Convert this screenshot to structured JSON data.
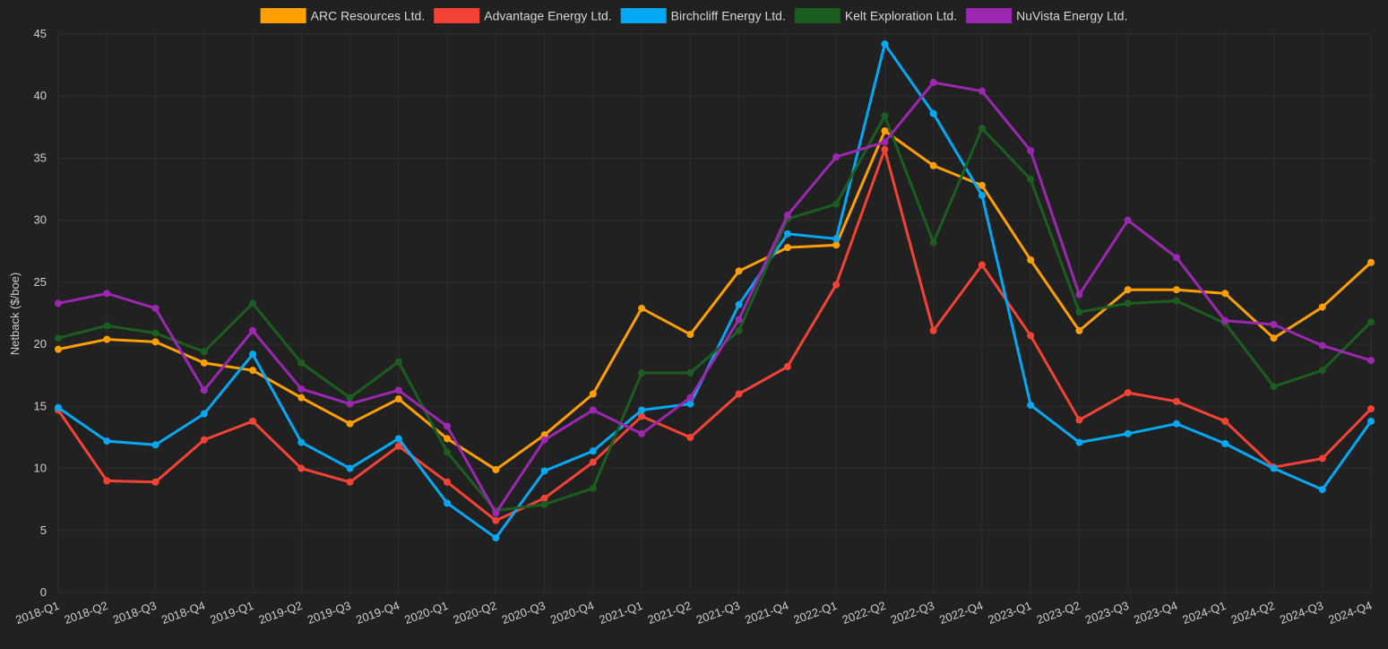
{
  "chart_data": {
    "type": "line",
    "title": "",
    "xlabel": "",
    "ylabel": "Netback ($/boe)",
    "ylim": [
      0,
      45
    ],
    "yticks": [
      0,
      5,
      10,
      15,
      20,
      25,
      30,
      35,
      40,
      45
    ],
    "grid": true,
    "legend_position": "top",
    "categories": [
      "2018-Q1",
      "2018-Q2",
      "2018-Q3",
      "2018-Q4",
      "2019-Q1",
      "2019-Q2",
      "2019-Q3",
      "2019-Q4",
      "2020-Q1",
      "2020-Q2",
      "2020-Q3",
      "2020-Q4",
      "2021-Q1",
      "2021-Q2",
      "2021-Q3",
      "2021-Q4",
      "2022-Q1",
      "2022-Q2",
      "2022-Q3",
      "2022-Q4",
      "2023-Q1",
      "2023-Q2",
      "2023-Q3",
      "2023-Q4",
      "2024-Q1",
      "2024-Q2",
      "2024-Q3",
      "2024-Q4"
    ],
    "series": [
      {
        "name": "ARC Resources Ltd.",
        "color": "#ff9f00",
        "values": [
          19.6,
          20.4,
          20.2,
          18.5,
          17.9,
          15.7,
          13.6,
          15.6,
          12.4,
          9.9,
          12.7,
          16.0,
          22.9,
          20.8,
          25.9,
          27.8,
          28.0,
          37.2,
          34.4,
          32.8,
          26.8,
          21.1,
          24.4,
          24.4,
          24.1,
          20.5,
          23.0,
          26.6
        ]
      },
      {
        "name": "Advantage Energy Ltd.",
        "color": "#f44336",
        "values": [
          14.7,
          9.0,
          8.9,
          12.3,
          13.8,
          10.0,
          8.9,
          11.8,
          8.9,
          5.8,
          7.6,
          10.5,
          14.2,
          12.5,
          16.0,
          18.2,
          24.8,
          35.7,
          21.1,
          26.4,
          20.7,
          13.9,
          16.1,
          15.4,
          13.8,
          10.1,
          10.8,
          14.8
        ]
      },
      {
        "name": "Birchcliff Energy Ltd.",
        "color": "#03a9f4",
        "values": [
          14.9,
          12.2,
          11.9,
          14.4,
          19.2,
          12.1,
          10.0,
          12.4,
          7.2,
          4.4,
          9.8,
          11.4,
          14.7,
          15.2,
          23.2,
          28.9,
          28.5,
          44.2,
          38.6,
          32.0,
          15.1,
          12.1,
          12.8,
          13.6,
          12.0,
          10.0,
          8.3,
          13.8
        ]
      },
      {
        "name": "Kelt Exploration Ltd.",
        "color": "#1b5e20",
        "values": [
          20.5,
          21.5,
          20.9,
          19.4,
          23.3,
          18.5,
          15.7,
          18.6,
          11.3,
          6.6,
          7.1,
          8.4,
          17.7,
          17.7,
          21.1,
          30.1,
          31.3,
          38.4,
          28.2,
          37.4,
          33.3,
          22.6,
          23.3,
          23.5,
          21.7,
          16.6,
          17.9,
          21.8
        ]
      },
      {
        "name": "NuVista Energy Ltd.",
        "color": "#9c27b0",
        "values": [
          23.3,
          24.1,
          22.9,
          16.3,
          21.1,
          16.4,
          15.2,
          16.3,
          13.4,
          6.4,
          12.3,
          14.7,
          12.8,
          15.7,
          22.0,
          30.4,
          35.1,
          36.3,
          41.1,
          40.4,
          35.6,
          24.0,
          30.0,
          27.0,
          21.9,
          21.6,
          19.9,
          18.7
        ]
      }
    ]
  }
}
